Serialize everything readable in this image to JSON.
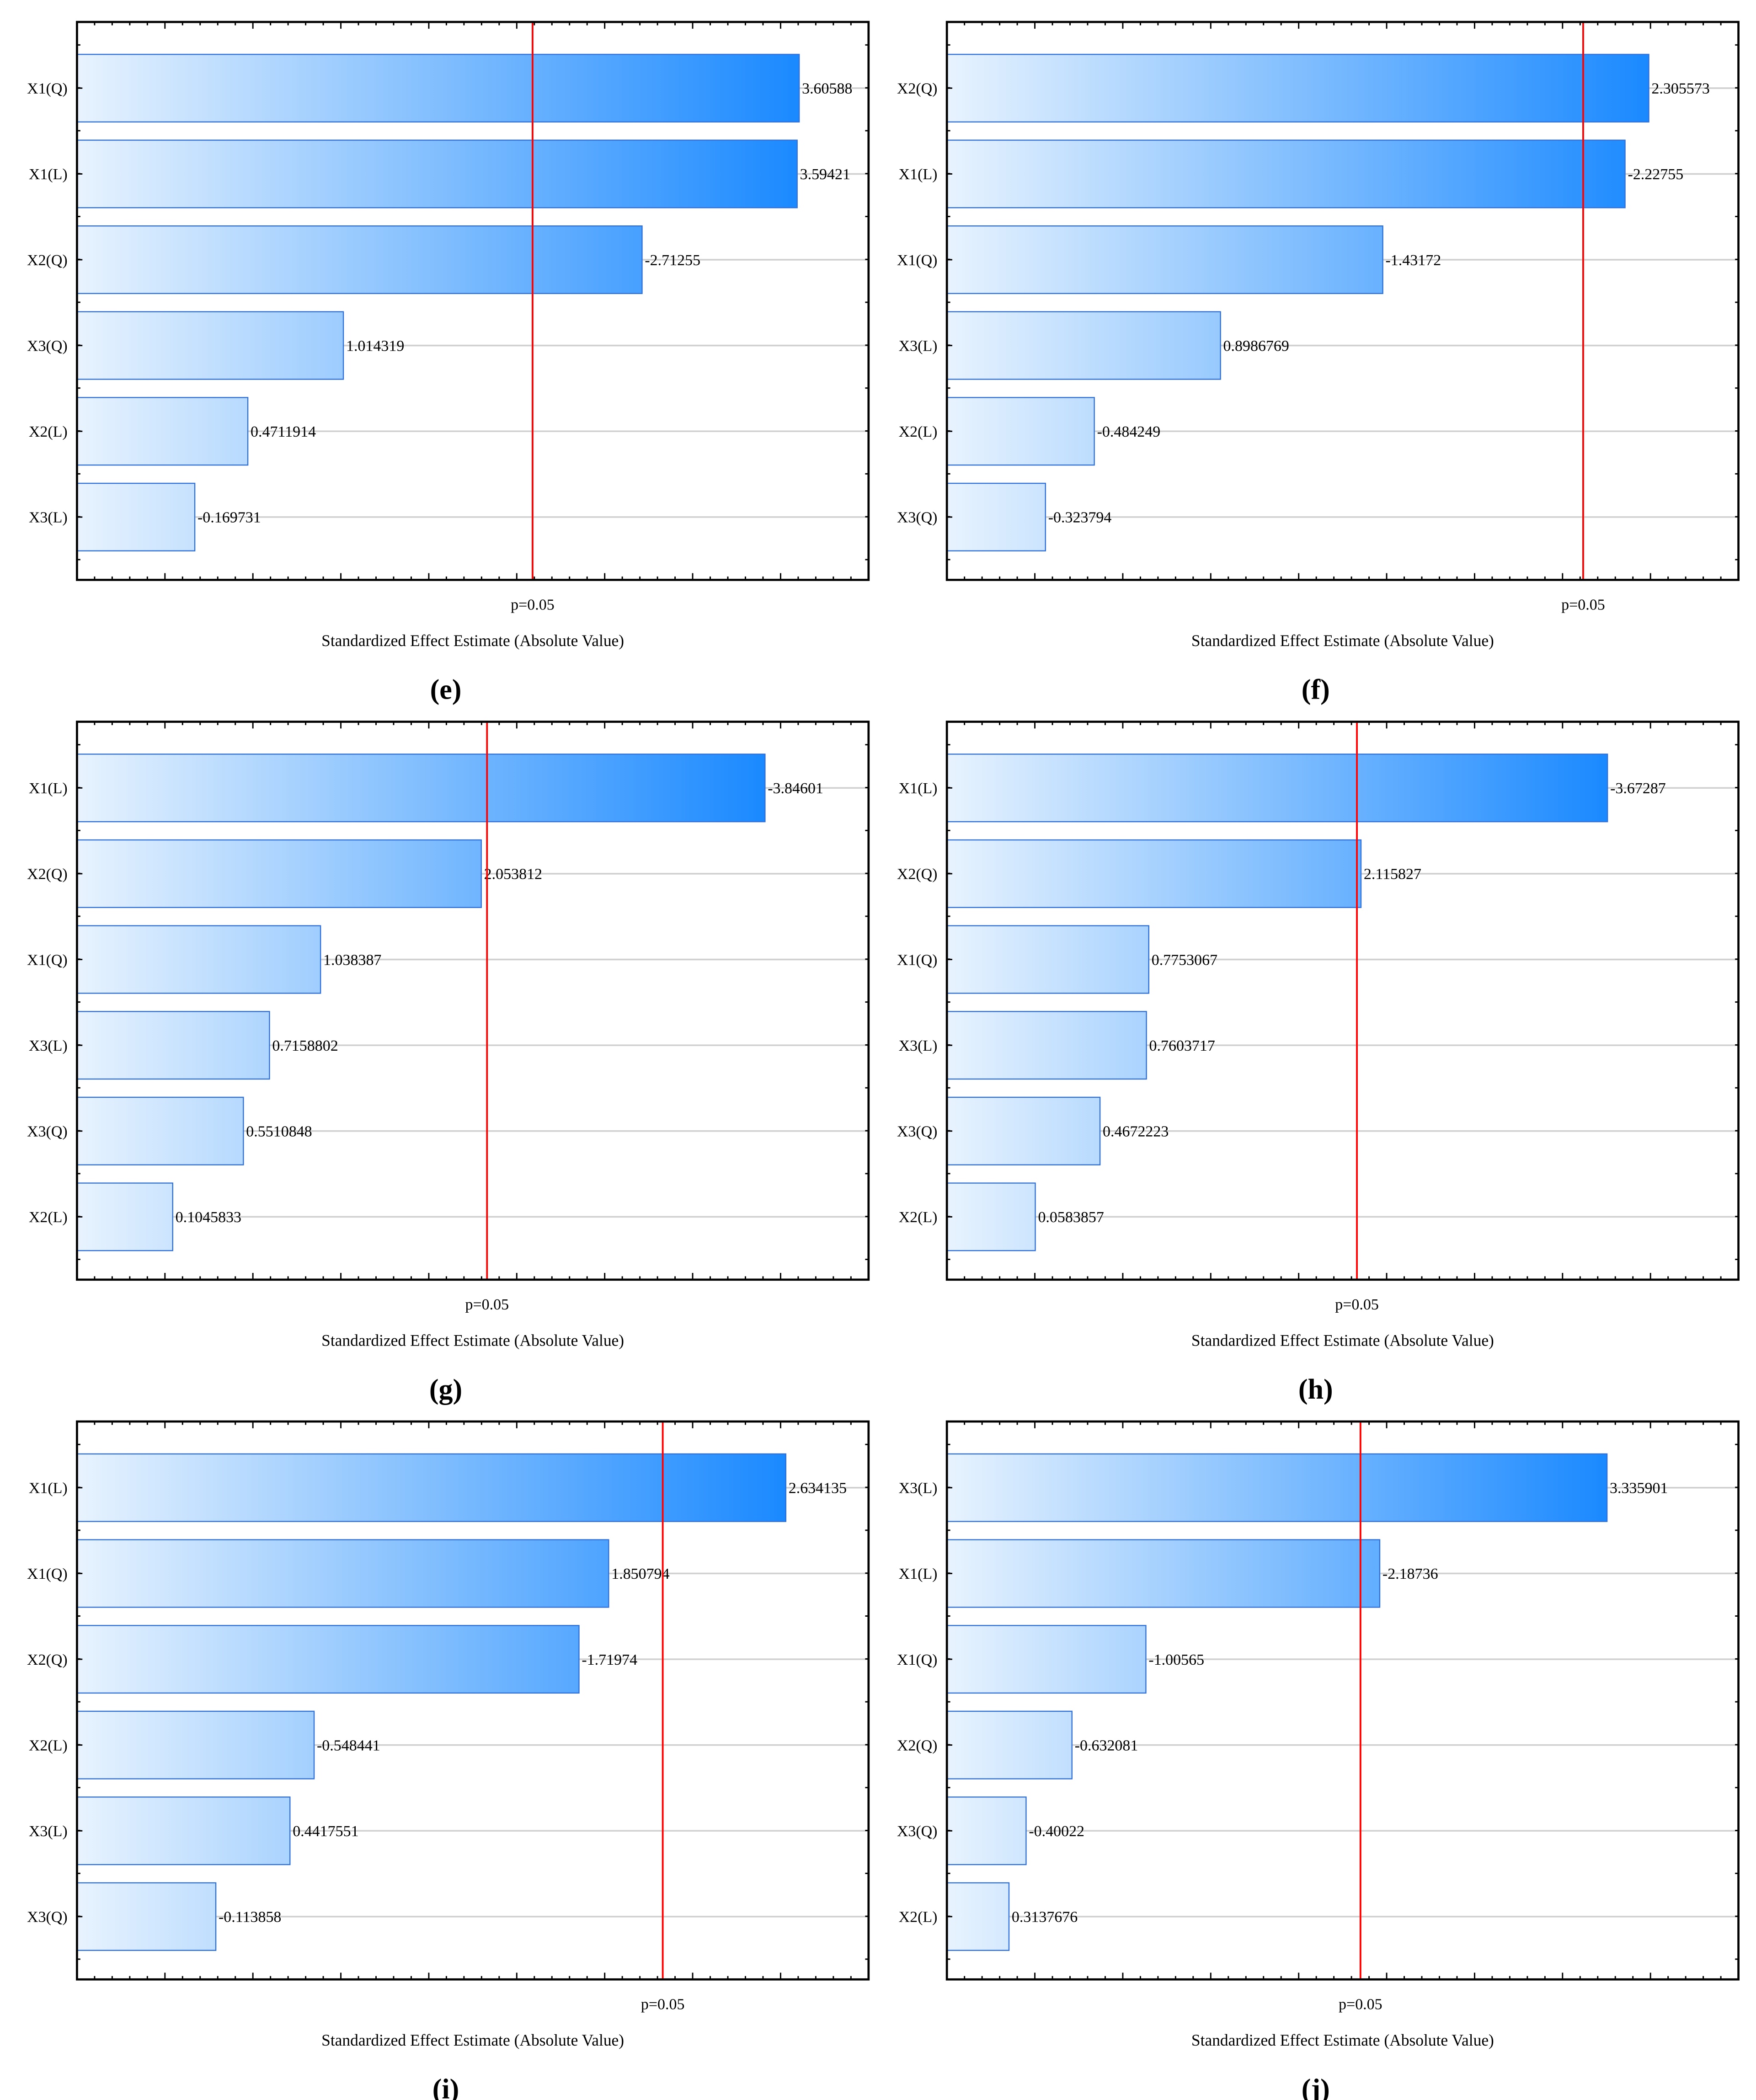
{
  "colors": {
    "bar_light": "#e8f3fe",
    "bar_dark": "#1a89ff",
    "bar_border": "#2f6fd8",
    "critical_line": "#ff0000",
    "grid": "#d0d0d0"
  },
  "chart_data": [
    {
      "panel": "(e)",
      "type": "bar",
      "orientation": "horizontal",
      "categories": [
        "X1(Q)",
        "X1(L)",
        "X2(Q)",
        "X3(Q)",
        "X2(L)",
        "X3(L)"
      ],
      "values": [
        3.60588,
        3.59421,
        2.71255,
        1.014319,
        0.4711914,
        0.169731
      ],
      "value_labels": [
        "3.60588",
        "3.59421",
        "-2.71255",
        "1.014319",
        "0.4711914",
        "-0.169731"
      ],
      "critical_value": 2.09,
      "critical_label": "p=0.05",
      "xlabel": "Standardized Effect Estimate (Absolute Value)",
      "xlim": [
        -0.5,
        4.0
      ],
      "grid": true
    },
    {
      "panel": "(f)",
      "type": "bar",
      "orientation": "horizontal",
      "categories": [
        "X2(Q)",
        "X1(L)",
        "X1(Q)",
        "X3(L)",
        "X2(L)",
        "X3(Q)"
      ],
      "values": [
        2.305573,
        2.22755,
        1.43172,
        0.8986769,
        0.484249,
        0.323794
      ],
      "value_labels": [
        "2.305573",
        "-2.22755",
        "-1.43172",
        "0.8986769",
        "-0.484249",
        "-0.323794"
      ],
      "critical_value": 2.09,
      "critical_label": "p=0.05",
      "xlabel": "Standardized Effect Estimate (Absolute Value)",
      "xlim": [
        0,
        2.6
      ],
      "grid": true
    },
    {
      "panel": "(g)",
      "type": "bar",
      "orientation": "horizontal",
      "categories": [
        "X1(L)",
        "X2(Q)",
        "X1(Q)",
        "X3(L)",
        "X3(Q)",
        "X2(L)"
      ],
      "values": [
        3.84601,
        2.053812,
        1.038387,
        0.7158802,
        0.5510848,
        0.1045833
      ],
      "value_labels": [
        "-3.84601",
        "2.053812",
        "1.038387",
        "0.7158802",
        "0.5510848",
        "0.1045833"
      ],
      "critical_value": 2.09,
      "critical_label": "p=0.05",
      "xlabel": "Standardized Effect Estimate (Absolute Value)",
      "xlim": [
        -0.5,
        4.5
      ],
      "grid": true
    },
    {
      "panel": "(h)",
      "type": "bar",
      "orientation": "horizontal",
      "categories": [
        "X1(L)",
        "X2(Q)",
        "X1(Q)",
        "X3(L)",
        "X3(Q)",
        "X2(L)"
      ],
      "values": [
        3.67287,
        2.115827,
        0.7753067,
        0.7603717,
        0.4672223,
        0.0583857
      ],
      "value_labels": [
        "-3.67287",
        "2.115827",
        "0.7753067",
        "0.7603717",
        "0.4672223",
        "0.0583857"
      ],
      "critical_value": 2.09,
      "critical_label": "p=0.05",
      "xlabel": "Standardized Effect Estimate (Absolute Value)",
      "xlim": [
        -0.5,
        4.5
      ],
      "grid": true
    },
    {
      "panel": "(i)",
      "type": "bar",
      "orientation": "horizontal",
      "categories": [
        "X1(L)",
        "X1(Q)",
        "X2(Q)",
        "X2(L)",
        "X3(L)",
        "X3(Q)"
      ],
      "values": [
        2.634135,
        1.850794,
        1.71974,
        0.548441,
        0.4417551,
        0.113858
      ],
      "value_labels": [
        "2.634135",
        "1.850794",
        "-1.71974",
        "-0.548441",
        "0.4417551",
        "-0.113858"
      ],
      "critical_value": 2.09,
      "critical_label": "p=0.05",
      "xlabel": "Standardized Effect Estimate (Absolute Value)",
      "xlim": [
        -0.5,
        3.0
      ],
      "grid": true
    },
    {
      "panel": "(j)",
      "type": "bar",
      "orientation": "horizontal",
      "categories": [
        "X3(L)",
        "X1(L)",
        "X1(Q)",
        "X2(Q)",
        "X3(Q)",
        "X2(L)"
      ],
      "values": [
        3.335901,
        2.18736,
        1.00565,
        0.632081,
        0.40022,
        0.3137676
      ],
      "value_labels": [
        "3.335901",
        "-2.18736",
        "-1.00565",
        "-0.632081",
        "-0.40022",
        "0.3137676"
      ],
      "critical_value": 2.09,
      "critical_label": "p=0.05",
      "xlabel": "Standardized Effect Estimate (Absolute Value)",
      "xlim": [
        0,
        4.0
      ],
      "grid": true
    }
  ]
}
